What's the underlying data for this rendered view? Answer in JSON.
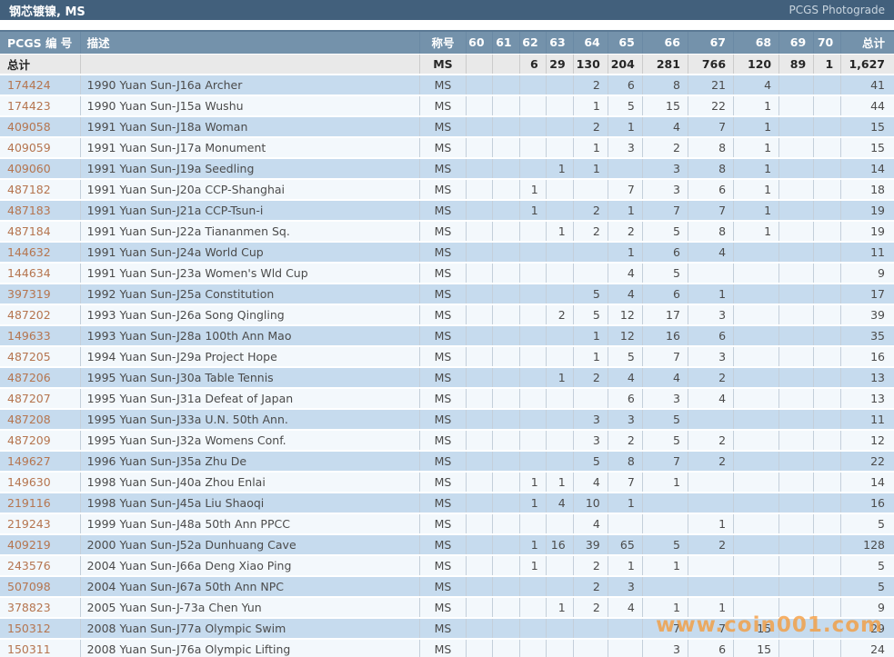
{
  "title_bar": {
    "title": "钢芯镀镍, MS",
    "link": "PCGS Photograde"
  },
  "colors": {
    "title_bar_bg": "#42607c",
    "header_bg": "#7492ab",
    "totals_bg": "#e9e9e9",
    "row_blue": "#c6dbee",
    "row_white": "#f3f8fc",
    "pcgs_link": "#b5754f",
    "watermark": "#f59b3c"
  },
  "watermark": "www.coin001.com",
  "table": {
    "headers": {
      "pcgs_no": "PCGS 编 号",
      "description": "描述",
      "designation": "称号",
      "grades": [
        "60",
        "61",
        "62",
        "63",
        "64",
        "65",
        "66",
        "67",
        "68",
        "69",
        "70"
      ],
      "total": "总计"
    },
    "totals_row": {
      "label": "总计",
      "designation": "MS",
      "grades": [
        "",
        "",
        "6",
        "29",
        "130",
        "204",
        "281",
        "766",
        "120",
        "89",
        "1"
      ],
      "total": "1,627"
    },
    "rows": [
      {
        "pcgs_no": "174424",
        "description": "1990 Yuan Sun-J16a Archer",
        "designation": "MS",
        "grades": [
          "",
          "",
          "",
          "",
          "2",
          "6",
          "8",
          "21",
          "4",
          "",
          ""
        ],
        "total": "41"
      },
      {
        "pcgs_no": "174423",
        "description": "1990 Yuan Sun-J15a Wushu",
        "designation": "MS",
        "grades": [
          "",
          "",
          "",
          "",
          "1",
          "5",
          "15",
          "22",
          "1",
          "",
          ""
        ],
        "total": "44"
      },
      {
        "pcgs_no": "409058",
        "description": "1991 Yuan Sun-J18a Woman",
        "designation": "MS",
        "grades": [
          "",
          "",
          "",
          "",
          "2",
          "1",
          "4",
          "7",
          "1",
          "",
          ""
        ],
        "total": "15"
      },
      {
        "pcgs_no": "409059",
        "description": "1991 Yuan Sun-J17a Monument",
        "designation": "MS",
        "grades": [
          "",
          "",
          "",
          "",
          "1",
          "3",
          "2",
          "8",
          "1",
          "",
          ""
        ],
        "total": "15"
      },
      {
        "pcgs_no": "409060",
        "description": "1991 Yuan Sun-J19a Seedling",
        "designation": "MS",
        "grades": [
          "",
          "",
          "",
          "1",
          "1",
          "",
          "3",
          "8",
          "1",
          "",
          ""
        ],
        "total": "14"
      },
      {
        "pcgs_no": "487182",
        "description": "1991 Yuan Sun-J20a CCP-Shanghai",
        "designation": "MS",
        "grades": [
          "",
          "",
          "1",
          "",
          "",
          "7",
          "3",
          "6",
          "1",
          "",
          ""
        ],
        "total": "18"
      },
      {
        "pcgs_no": "487183",
        "description": "1991 Yuan Sun-J21a CCP-Tsun-i",
        "designation": "MS",
        "grades": [
          "",
          "",
          "1",
          "",
          "2",
          "1",
          "7",
          "7",
          "1",
          "",
          ""
        ],
        "total": "19"
      },
      {
        "pcgs_no": "487184",
        "description": "1991 Yuan Sun-J22a Tiananmen Sq.",
        "designation": "MS",
        "grades": [
          "",
          "",
          "",
          "1",
          "2",
          "2",
          "5",
          "8",
          "1",
          "",
          ""
        ],
        "total": "19"
      },
      {
        "pcgs_no": "144632",
        "description": "1991 Yuan Sun-J24a World Cup",
        "designation": "MS",
        "grades": [
          "",
          "",
          "",
          "",
          "",
          "1",
          "6",
          "4",
          "",
          "",
          ""
        ],
        "total": "11"
      },
      {
        "pcgs_no": "144634",
        "description": "1991 Yuan Sun-J23a Women's Wld Cup",
        "designation": "MS",
        "grades": [
          "",
          "",
          "",
          "",
          "",
          "4",
          "5",
          "",
          "",
          "",
          ""
        ],
        "total": "9"
      },
      {
        "pcgs_no": "397319",
        "description": "1992 Yuan Sun-J25a Constitution",
        "designation": "MS",
        "grades": [
          "",
          "",
          "",
          "",
          "5",
          "4",
          "6",
          "1",
          "",
          "",
          ""
        ],
        "total": "17"
      },
      {
        "pcgs_no": "487202",
        "description": "1993 Yuan Sun-J26a Song Qingling",
        "designation": "MS",
        "grades": [
          "",
          "",
          "",
          "2",
          "5",
          "12",
          "17",
          "3",
          "",
          "",
          ""
        ],
        "total": "39"
      },
      {
        "pcgs_no": "149633",
        "description": "1993 Yuan Sun-J28a 100th Ann Mao",
        "designation": "MS",
        "grades": [
          "",
          "",
          "",
          "",
          "1",
          "12",
          "16",
          "6",
          "",
          "",
          ""
        ],
        "total": "35"
      },
      {
        "pcgs_no": "487205",
        "description": "1994 Yuan Sun-J29a Project Hope",
        "designation": "MS",
        "grades": [
          "",
          "",
          "",
          "",
          "1",
          "5",
          "7",
          "3",
          "",
          "",
          ""
        ],
        "total": "16"
      },
      {
        "pcgs_no": "487206",
        "description": "1995 Yuan Sun-J30a Table Tennis",
        "designation": "MS",
        "grades": [
          "",
          "",
          "",
          "1",
          "2",
          "4",
          "4",
          "2",
          "",
          "",
          ""
        ],
        "total": "13"
      },
      {
        "pcgs_no": "487207",
        "description": "1995 Yuan Sun-J31a Defeat of Japan",
        "designation": "MS",
        "grades": [
          "",
          "",
          "",
          "",
          "",
          "6",
          "3",
          "4",
          "",
          "",
          ""
        ],
        "total": "13"
      },
      {
        "pcgs_no": "487208",
        "description": "1995 Yuan Sun-J33a U.N. 50th Ann.",
        "designation": "MS",
        "grades": [
          "",
          "",
          "",
          "",
          "3",
          "3",
          "5",
          "",
          "",
          "",
          ""
        ],
        "total": "11"
      },
      {
        "pcgs_no": "487209",
        "description": "1995 Yuan Sun-J32a Womens Conf.",
        "designation": "MS",
        "grades": [
          "",
          "",
          "",
          "",
          "3",
          "2",
          "5",
          "2",
          "",
          "",
          ""
        ],
        "total": "12"
      },
      {
        "pcgs_no": "149627",
        "description": "1996 Yuan Sun-J35a Zhu De",
        "designation": "MS",
        "grades": [
          "",
          "",
          "",
          "",
          "5",
          "8",
          "7",
          "2",
          "",
          "",
          ""
        ],
        "total": "22"
      },
      {
        "pcgs_no": "149630",
        "description": "1998 Yuan Sun-J40a Zhou Enlai",
        "designation": "MS",
        "grades": [
          "",
          "",
          "1",
          "1",
          "4",
          "7",
          "1",
          "",
          "",
          "",
          ""
        ],
        "total": "14"
      },
      {
        "pcgs_no": "219116",
        "description": "1998 Yuan Sun-J45a Liu Shaoqi",
        "designation": "MS",
        "grades": [
          "",
          "",
          "1",
          "4",
          "10",
          "1",
          "",
          "",
          "",
          "",
          ""
        ],
        "total": "16"
      },
      {
        "pcgs_no": "219243",
        "description": "1999 Yuan Sun-J48a 50th Ann PPCC",
        "designation": "MS",
        "grades": [
          "",
          "",
          "",
          "",
          "4",
          "",
          "",
          "1",
          "",
          "",
          ""
        ],
        "total": "5"
      },
      {
        "pcgs_no": "409219",
        "description": "2000 Yuan Sun-J52a Dunhuang Cave",
        "designation": "MS",
        "grades": [
          "",
          "",
          "1",
          "16",
          "39",
          "65",
          "5",
          "2",
          "",
          "",
          ""
        ],
        "total": "128"
      },
      {
        "pcgs_no": "243576",
        "description": "2004 Yuan Sun-J66a Deng Xiao Ping",
        "designation": "MS",
        "grades": [
          "",
          "",
          "1",
          "",
          "2",
          "1",
          "1",
          "",
          "",
          "",
          ""
        ],
        "total": "5"
      },
      {
        "pcgs_no": "507098",
        "description": "2004 Yuan Sun-J67a 50th Ann NPC",
        "designation": "MS",
        "grades": [
          "",
          "",
          "",
          "",
          "2",
          "3",
          "",
          "",
          "",
          "",
          ""
        ],
        "total": "5"
      },
      {
        "pcgs_no": "378823",
        "description": "2005 Yuan Sun-J-73a Chen Yun",
        "designation": "MS",
        "grades": [
          "",
          "",
          "",
          "1",
          "2",
          "4",
          "1",
          "1",
          "",
          "",
          ""
        ],
        "total": "9"
      },
      {
        "pcgs_no": "150312",
        "description": "2008 Yuan Sun-J77a Olympic Swim",
        "designation": "MS",
        "grades": [
          "",
          "",
          "",
          "",
          "",
          "",
          "7",
          "7",
          "15",
          "",
          ""
        ],
        "total": "29"
      },
      {
        "pcgs_no": "150311",
        "description": "2008 Yuan Sun-J76a Olympic Lifting",
        "designation": "MS",
        "grades": [
          "",
          "",
          "",
          "",
          "",
          "",
          "3",
          "6",
          "15",
          "",
          ""
        ],
        "total": "24"
      }
    ]
  }
}
